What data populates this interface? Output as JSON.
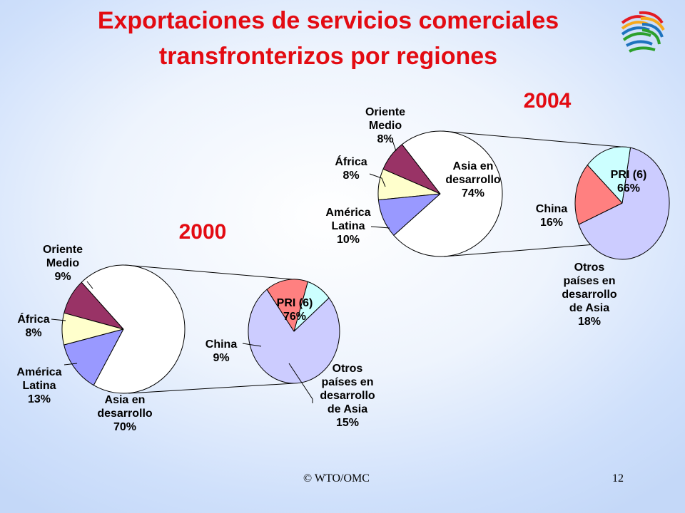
{
  "slide": {
    "title_line1": "Exportaciones de servicios comerciales",
    "title_line2": "transfronterizos por regiones",
    "footer_left": "© WTO/OMC",
    "footer_right": "12"
  },
  "colors": {
    "title": "#e30b12",
    "oriente_medio": "#993366",
    "africa": "#ffffcc",
    "america_latina": "#9999ff",
    "asia_desarrollo": "#ffffff",
    "pri": "#ccccff",
    "china": "#ccffff",
    "otros_asia": "#ff8080"
  },
  "chart_data": [
    {
      "type": "pie",
      "title": "2000",
      "main_pie": [
        {
          "label": "Oriente Medio",
          "value": 9,
          "lines": [
            "Oriente",
            "Medio",
            "9%"
          ]
        },
        {
          "label": "África",
          "value": 8,
          "lines": [
            "África",
            "8%"
          ]
        },
        {
          "label": "América Latina",
          "value": 13,
          "lines": [
            "América",
            "Latina",
            "13%"
          ]
        },
        {
          "label": "Asia en desarrollo",
          "value": 70,
          "lines": [
            "Asia en",
            "desarrollo",
            "70%"
          ]
        }
      ],
      "breakdown_of": "Asia en desarrollo",
      "breakdown_pie": [
        {
          "label": "PRI (6)",
          "value": 76,
          "lines": [
            "PRI (6)",
            "76%"
          ]
        },
        {
          "label": "China",
          "value": 9,
          "lines": [
            "China",
            "9%"
          ]
        },
        {
          "label": "Otros países en desarrollo de Asia",
          "value": 15,
          "lines": [
            "Otros",
            "países en",
            "desarrollo",
            "de Asia",
            "15%"
          ]
        }
      ]
    },
    {
      "type": "pie",
      "title": "2004",
      "main_pie": [
        {
          "label": "Oriente Medio",
          "value": 8,
          "lines": [
            "Oriente",
            "Medio",
            "8%"
          ]
        },
        {
          "label": "África",
          "value": 8,
          "lines": [
            "África",
            "8%"
          ]
        },
        {
          "label": "América Latina",
          "value": 10,
          "lines": [
            "América",
            "Latina",
            "10%"
          ]
        },
        {
          "label": "Asia en desarrollo",
          "value": 74,
          "lines": [
            "Asia en",
            "desarrollo",
            "74%"
          ]
        }
      ],
      "breakdown_of": "Asia en desarrollo",
      "breakdown_pie": [
        {
          "label": "PRI (6)",
          "value": 66,
          "lines": [
            "PRI (6)",
            "66%"
          ]
        },
        {
          "label": "China",
          "value": 16,
          "lines": [
            "China",
            "16%"
          ]
        },
        {
          "label": "Otros países en desarrollo de Asia",
          "value": 18,
          "lines": [
            "Otros",
            "países en",
            "desarrollo",
            "de Asia",
            "18%"
          ]
        }
      ]
    }
  ]
}
